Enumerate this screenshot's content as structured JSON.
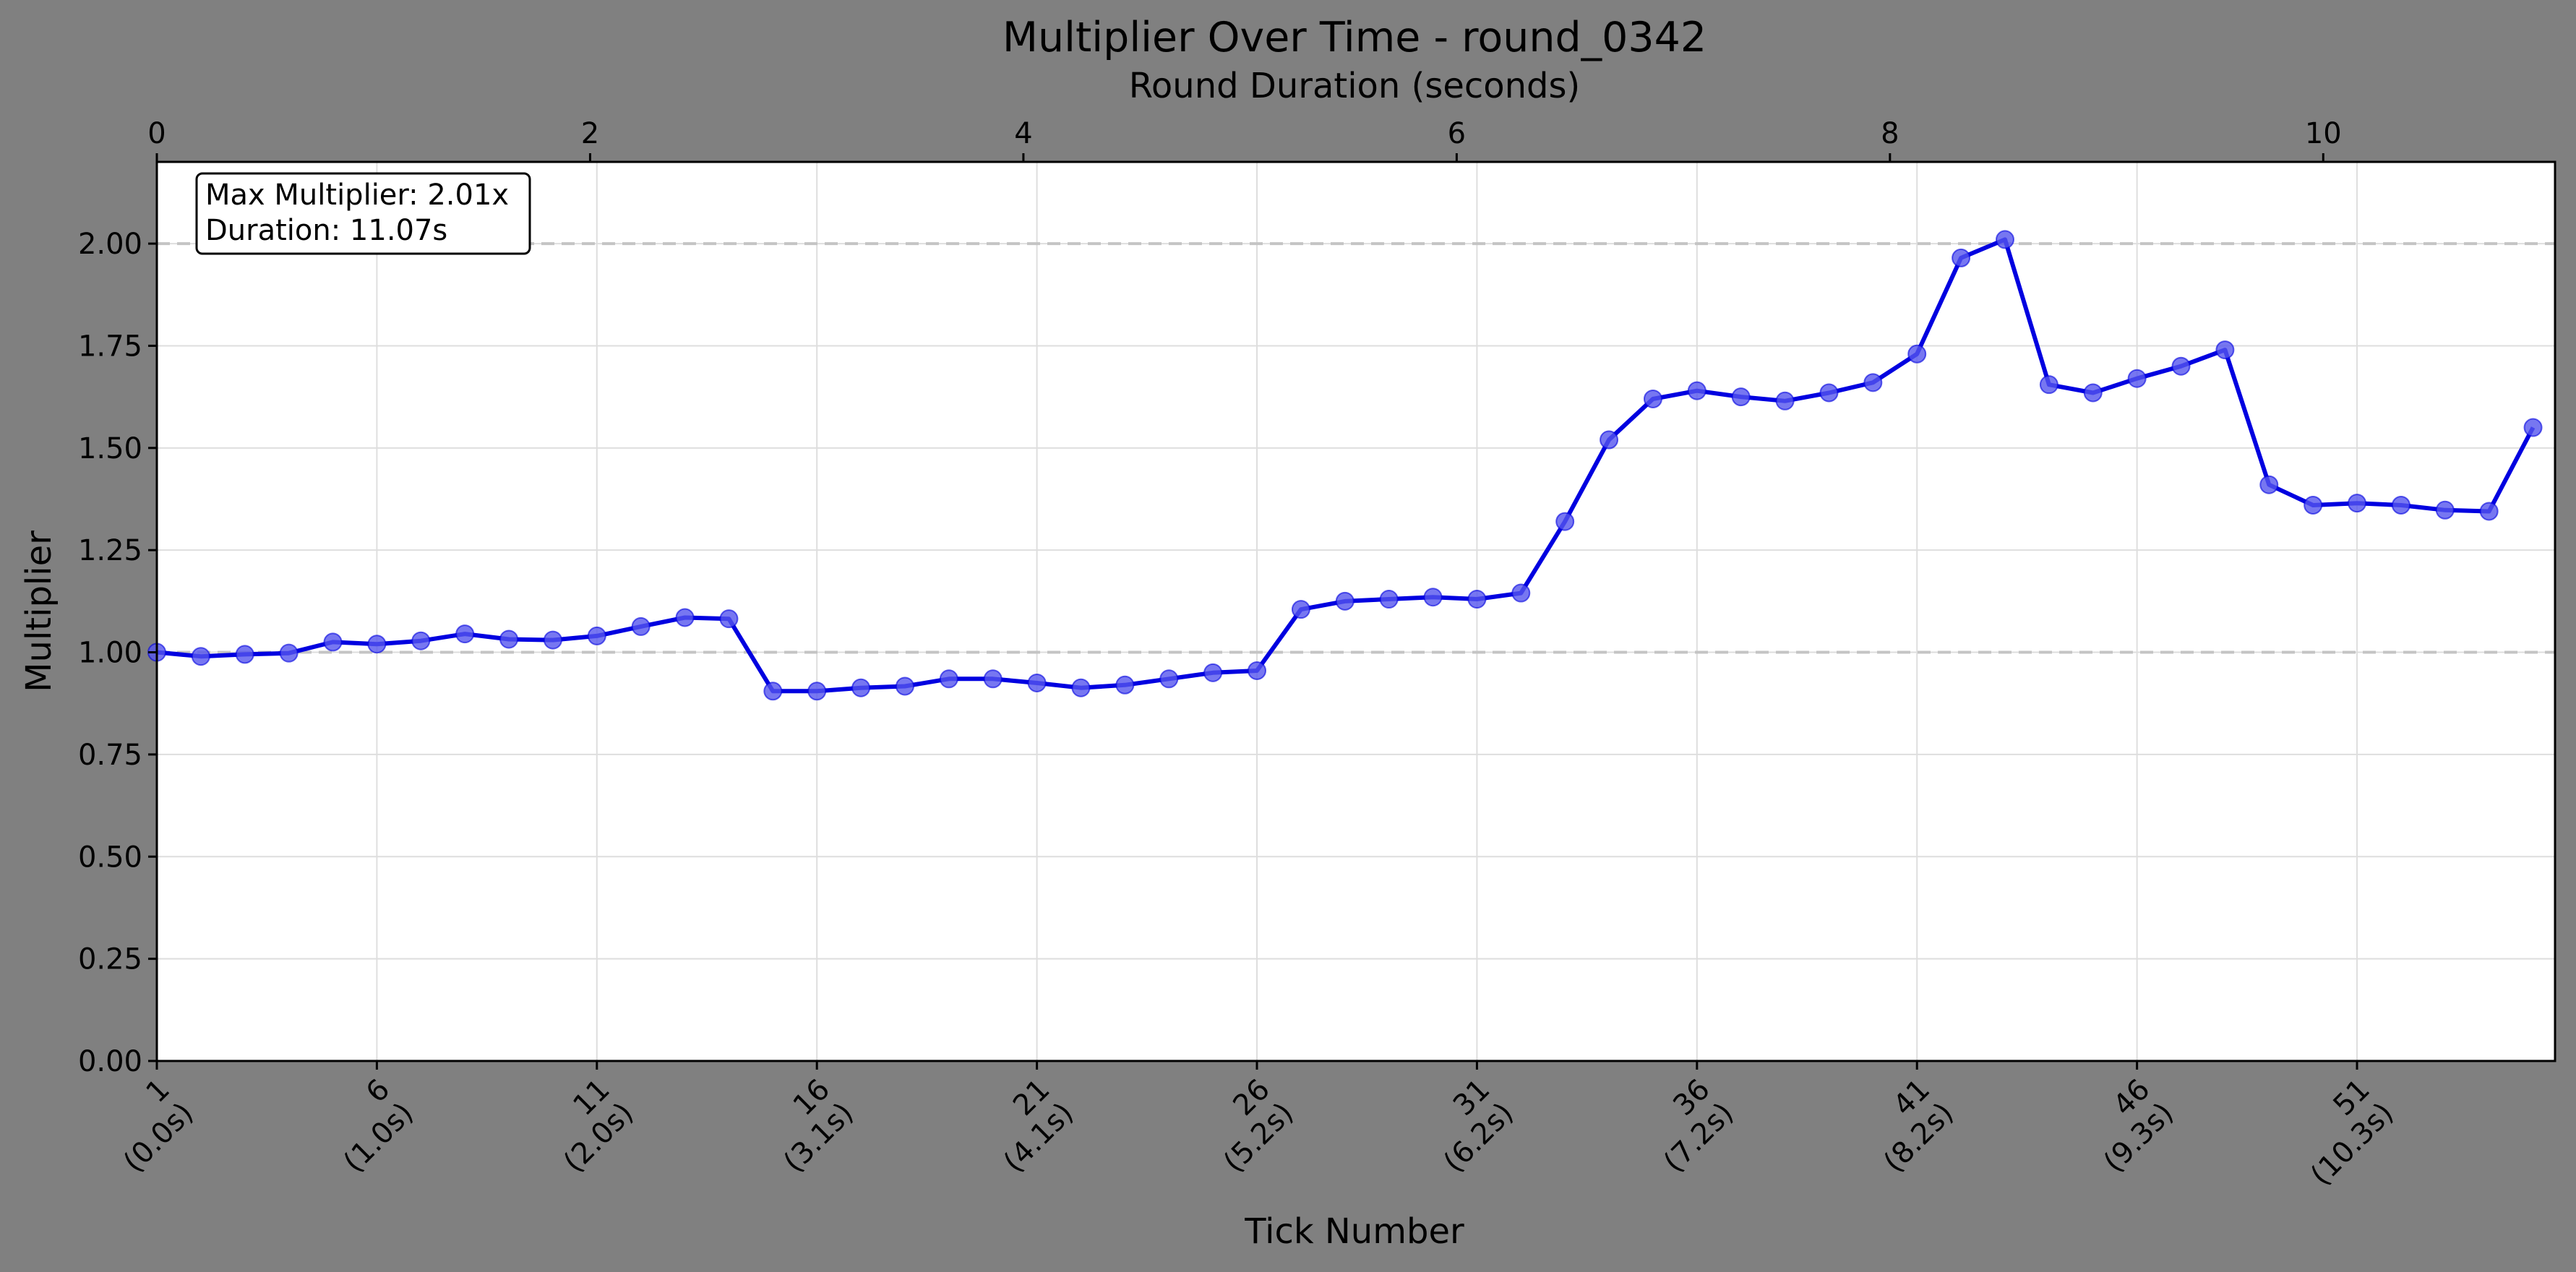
{
  "chart_data": {
    "type": "line",
    "title": "Multiplier Over Time - round_0342",
    "xlabel": "Tick Number",
    "ylabel": "Multiplier",
    "top_xlabel": "Round Duration (seconds)",
    "xlim": [
      1,
      55
    ],
    "ylim": [
      0,
      2.2
    ],
    "top_xlim": [
      0,
      11.07
    ],
    "grid": true,
    "annotation": [
      "Max Multiplier: 2.01x",
      "Duration: 11.07s"
    ],
    "reference_lines": [
      1.0,
      2.0
    ],
    "x_ticks": [
      {
        "value": 1,
        "label": [
          "1",
          "(0.0s)"
        ]
      },
      {
        "value": 6,
        "label": [
          "6",
          "(1.0s)"
        ]
      },
      {
        "value": 11,
        "label": [
          "11",
          "(2.0s)"
        ]
      },
      {
        "value": 16,
        "label": [
          "16",
          "(3.1s)"
        ]
      },
      {
        "value": 21,
        "label": [
          "21",
          "(4.1s)"
        ]
      },
      {
        "value": 26,
        "label": [
          "26",
          "(5.2s)"
        ]
      },
      {
        "value": 31,
        "label": [
          "31",
          "(6.2s)"
        ]
      },
      {
        "value": 36,
        "label": [
          "36",
          "(7.2s)"
        ]
      },
      {
        "value": 41,
        "label": [
          "41",
          "(8.2s)"
        ]
      },
      {
        "value": 46,
        "label": [
          "46",
          "(9.3s)"
        ]
      },
      {
        "value": 51,
        "label": [
          "51",
          "(10.3s)"
        ]
      }
    ],
    "top_ticks": [
      {
        "value": 0,
        "label": "0"
      },
      {
        "value": 2,
        "label": "2"
      },
      {
        "value": 4,
        "label": "4"
      },
      {
        "value": 6,
        "label": "6"
      },
      {
        "value": 8,
        "label": "8"
      },
      {
        "value": 10,
        "label": "10"
      }
    ],
    "y_ticks": [
      {
        "value": 0,
        "label": "0.00"
      },
      {
        "value": 0.25,
        "label": "0.25"
      },
      {
        "value": 0.5,
        "label": "0.50"
      },
      {
        "value": 0.75,
        "label": "0.75"
      },
      {
        "value": 1.0,
        "label": "1.00"
      },
      {
        "value": 1.25,
        "label": "1.25"
      },
      {
        "value": 1.5,
        "label": "1.50"
      },
      {
        "value": 1.75,
        "label": "1.75"
      },
      {
        "value": 2.0,
        "label": "2.00"
      }
    ],
    "series": [
      {
        "color": "#0000e0",
        "marker_color": "#5555ee",
        "x": [
          1,
          2,
          3,
          4,
          5,
          6,
          7,
          8,
          9,
          10,
          11,
          12,
          13,
          14,
          15,
          16,
          17,
          18,
          19,
          20,
          21,
          22,
          23,
          24,
          25,
          26,
          27,
          28,
          29,
          30,
          31,
          32,
          33,
          34,
          35,
          36,
          37,
          38,
          39,
          40,
          41,
          42,
          43,
          44,
          45,
          46,
          47,
          48,
          49,
          50,
          51,
          52,
          53,
          54,
          55
        ],
        "y": [
          1.0,
          0.99,
          0.995,
          0.998,
          1.025,
          1.02,
          1.028,
          1.045,
          1.032,
          1.03,
          1.04,
          1.063,
          1.085,
          1.082,
          0.905,
          0.905,
          0.913,
          0.917,
          0.935,
          0.935,
          0.925,
          0.913,
          0.92,
          0.935,
          0.95,
          0.955,
          1.105,
          1.125,
          1.13,
          1.135,
          1.13,
          1.145,
          1.32,
          1.52,
          1.62,
          1.64,
          1.625,
          1.615,
          1.635,
          1.66,
          1.73,
          1.965,
          2.01,
          1.655,
          1.635,
          1.67,
          1.7,
          1.74,
          1.41,
          1.36,
          1.365,
          1.36,
          1.348,
          1.345,
          1.55
        ]
      }
    ]
  }
}
